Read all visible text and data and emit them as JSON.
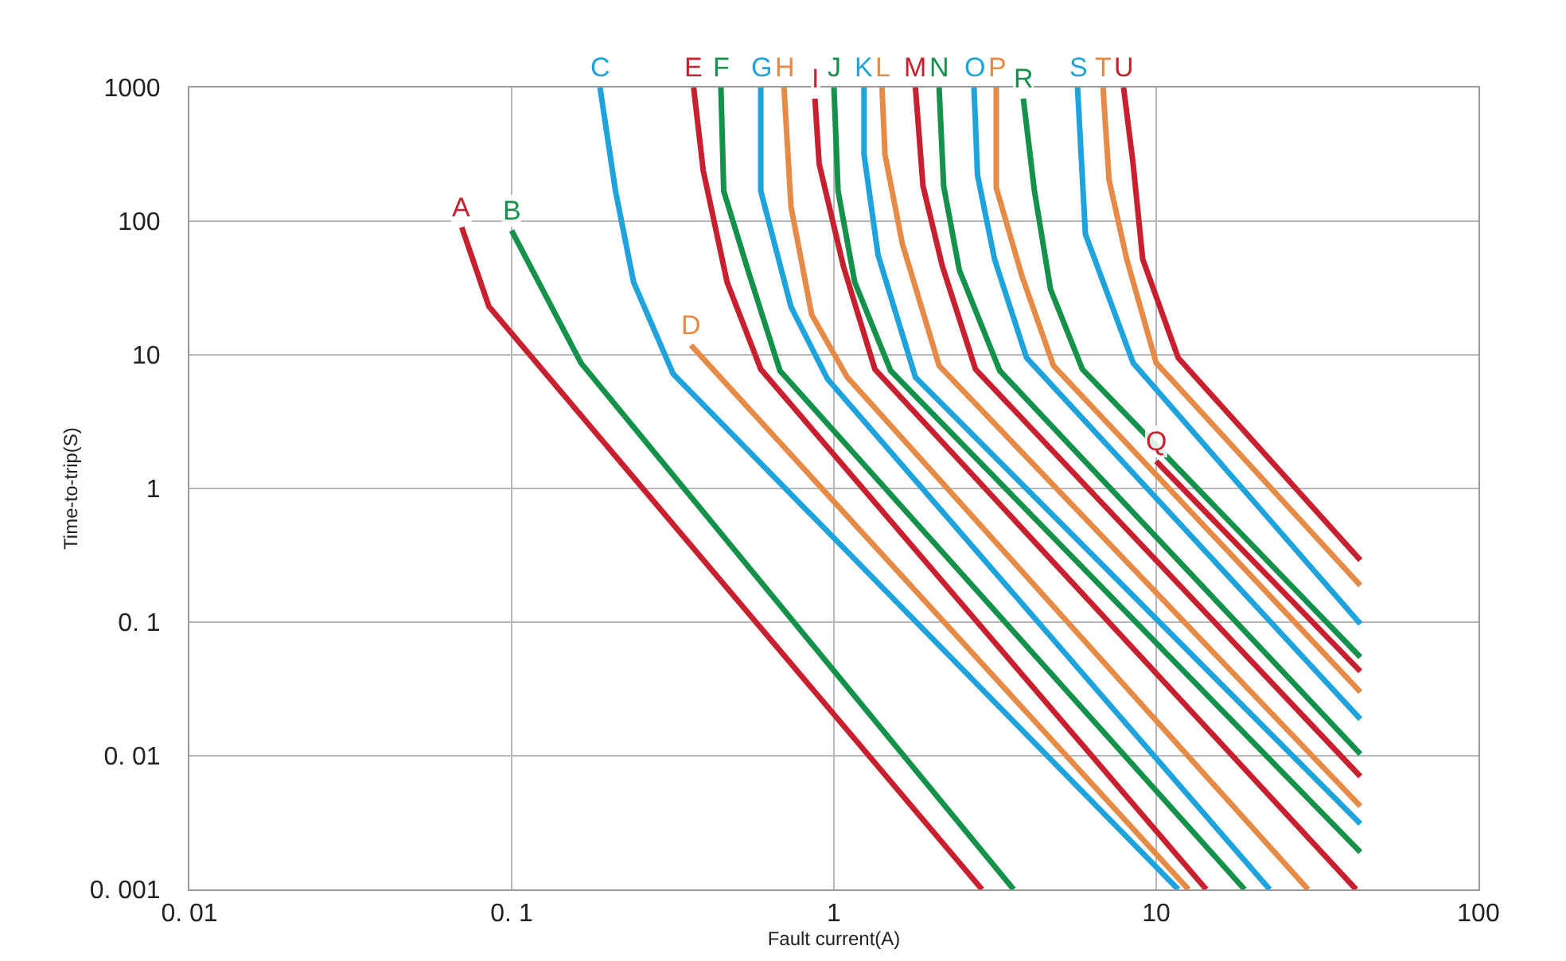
{
  "chart_data": {
    "type": "line",
    "xlabel": "Fault current(A)",
    "ylabel": "Time-to-trip(S)",
    "log": "xy",
    "grid": true,
    "legend": false,
    "xlim": [
      0.01,
      100
    ],
    "ylim": [
      0.001,
      1000
    ],
    "xticks": [
      {
        "value": 0.01,
        "label": "0. 01"
      },
      {
        "value": 0.1,
        "label": "0. 1"
      },
      1,
      10,
      100
    ],
    "yticks": [
      {
        "value": 0.001,
        "label": "0. 001"
      },
      {
        "value": 0.01,
        "label": "0. 01"
      },
      {
        "value": 0.1,
        "label": "0. 1"
      },
      1,
      10,
      100,
      1000
    ],
    "series": [
      {
        "name": "A",
        "color": "#c8202f",
        "x": [
          0.07,
          0.085,
          2.88
        ],
        "values": [
          90,
          23,
          0.001
        ]
      },
      {
        "name": "B",
        "color": "#14914a",
        "x": [
          0.1,
          0.164,
          3.61
        ],
        "values": [
          85,
          8.7,
          0.001
        ]
      },
      {
        "name": "C",
        "color": "#1ea3dc",
        "x": [
          0.188,
          0.21,
          0.239,
          0.317,
          11.7
        ],
        "values": [
          1000,
          168,
          35,
          7.2,
          0.001
        ]
      },
      {
        "name": "D",
        "color": "#e58b47",
        "x": [
          0.36,
          12.6
        ],
        "values": [
          11.8,
          0.001
        ]
      },
      {
        "name": "E",
        "color": "#c8202f",
        "x": [
          0.367,
          0.393,
          0.466,
          0.593,
          14.3
        ],
        "values": [
          1000,
          240,
          35,
          7.8,
          0.001
        ]
      },
      {
        "name": "F",
        "color": "#14914a",
        "x": [
          0.446,
          0.455,
          0.541,
          0.68,
          18.8
        ],
        "values": [
          1000,
          168,
          43,
          7.6,
          0.001
        ]
      },
      {
        "name": "G",
        "color": "#1ea3dc",
        "x": [
          0.593,
          0.593,
          0.736,
          0.955,
          22.5
        ],
        "values": [
          1000,
          168,
          22.8,
          6.6,
          0.001
        ]
      },
      {
        "name": "H",
        "color": "#e58b47",
        "x": [
          0.7,
          0.736,
          0.853,
          1.1,
          29.6
        ],
        "values": [
          1000,
          128,
          20,
          6.8,
          0.001
        ]
      },
      {
        "name": "I",
        "color": "#c8202f",
        "x": [
          0.873,
          0.9,
          1.07,
          1.34,
          41.7
        ],
        "values": [
          826,
          268,
          46,
          7.8,
          0.001
        ]
      },
      {
        "name": "J",
        "color": "#14914a",
        "x": [
          1.0,
          1.03,
          1.16,
          1.5,
          43
        ],
        "values": [
          1000,
          168,
          35,
          7.6,
          0.0019
        ]
      },
      {
        "name": "K",
        "color": "#1ea3dc",
        "x": [
          1.24,
          1.24,
          1.37,
          1.79,
          43
        ],
        "values": [
          1000,
          316,
          56,
          6.8,
          0.0031
        ]
      },
      {
        "name": "L",
        "color": "#e58b47",
        "x": [
          1.41,
          1.44,
          1.63,
          2.12,
          43
        ],
        "values": [
          1000,
          316,
          68,
          8.3,
          0.0042
        ]
      },
      {
        "name": "M",
        "color": "#c8202f",
        "x": [
          1.79,
          1.89,
          2.17,
          2.75,
          43
        ],
        "values": [
          1000,
          183,
          46,
          7.8,
          0.007
        ]
      },
      {
        "name": "N",
        "color": "#14914a",
        "x": [
          2.12,
          2.19,
          2.45,
          3.27,
          43
        ],
        "values": [
          1000,
          183,
          43,
          7.6,
          0.0103
        ]
      },
      {
        "name": "O",
        "color": "#1ea3dc",
        "x": [
          2.72,
          2.79,
          3.15,
          3.96,
          43
        ],
        "values": [
          1000,
          221,
          52,
          9.5,
          0.0188
        ]
      },
      {
        "name": "P",
        "color": "#e58b47",
        "x": [
          3.19,
          3.19,
          3.83,
          4.8,
          43
        ],
        "values": [
          1000,
          178,
          39,
          8.3,
          0.03
        ]
      },
      {
        "name": "Q",
        "color": "#c8202f",
        "x": [
          10.0,
          43
        ],
        "values": [
          1.6,
          0.0428
        ]
      },
      {
        "name": "R",
        "color": "#14914a",
        "x": [
          3.87,
          4.19,
          4.7,
          5.9,
          43
        ],
        "values": [
          826,
          168,
          31,
          7.8,
          0.0547
        ]
      },
      {
        "name": "S",
        "color": "#1ea3dc",
        "x": [
          5.7,
          6.03,
          8.48,
          43
        ],
        "values": [
          1000,
          80,
          8.7,
          0.097
        ]
      },
      {
        "name": "T",
        "color": "#e58b47",
        "x": [
          6.84,
          7.14,
          8.1,
          10.0,
          43
        ],
        "values": [
          1000,
          204,
          52,
          8.7,
          0.188
        ]
      },
      {
        "name": "U",
        "color": "#c8202f",
        "x": [
          7.92,
          8.48,
          9.08,
          11.7,
          43
        ],
        "values": [
          1000,
          268,
          52,
          9.5,
          0.291
        ]
      }
    ]
  }
}
